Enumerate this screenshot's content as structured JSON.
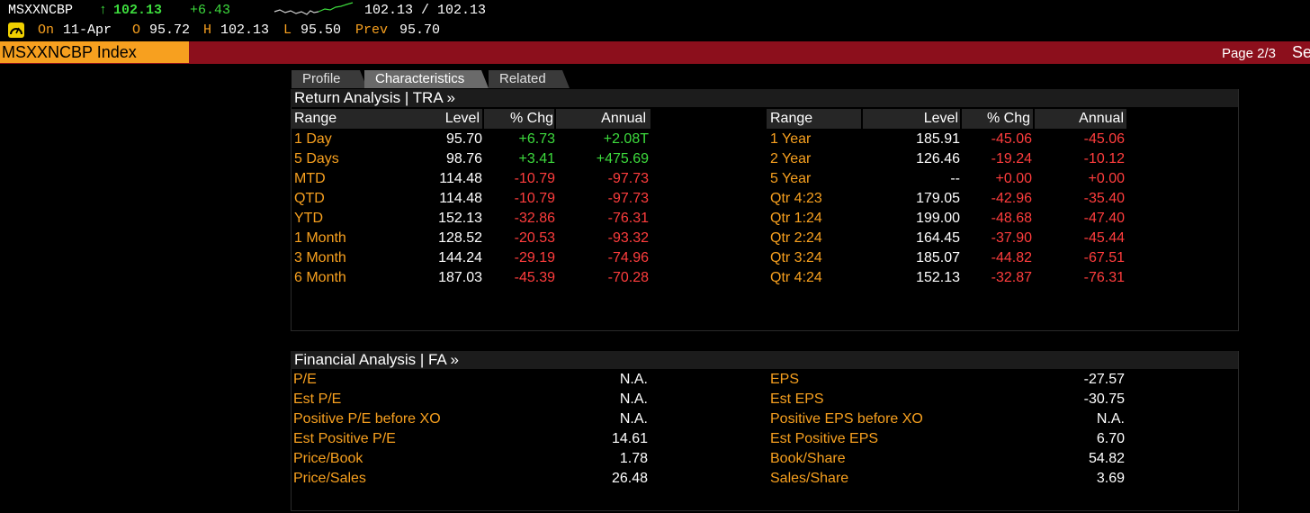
{
  "ticker": {
    "symbol": "MSXXNCBP",
    "arrow": "↑",
    "last": "102.13",
    "change": "+6.43",
    "bid_ask": "102.13 / 102.13"
  },
  "quote_line": {
    "on_label": "On",
    "date": "11-Apr",
    "open_label": "O",
    "open": "95.72",
    "high_label": "H",
    "high": "102.13",
    "low_label": "L",
    "low": "95.50",
    "prev_label": "Prev",
    "prev": "95.70"
  },
  "title": {
    "security": "MSXXNCBP Index",
    "page": "Page 2/3",
    "truncated": "Se"
  },
  "tabs": [
    {
      "label": "Profile",
      "active": false
    },
    {
      "label": "Characteristics",
      "active": true
    },
    {
      "label": "Related",
      "active": false
    }
  ],
  "return_analysis": {
    "header": "Return Analysis | TRA »",
    "columns": [
      "Range",
      "Level",
      "% Chg",
      "Annual"
    ],
    "left_rows": [
      {
        "range": "1 Day",
        "level": "95.70",
        "chg": "+6.73",
        "annual": "+2.08T"
      },
      {
        "range": "5 Days",
        "level": "98.76",
        "chg": "+3.41",
        "annual": "+475.69"
      },
      {
        "range": "MTD",
        "level": "114.48",
        "chg": "-10.79",
        "annual": "-97.73"
      },
      {
        "range": "QTD",
        "level": "114.48",
        "chg": "-10.79",
        "annual": "-97.73"
      },
      {
        "range": "YTD",
        "level": "152.13",
        "chg": "-32.86",
        "annual": "-76.31"
      },
      {
        "range": "1 Month",
        "level": "128.52",
        "chg": "-20.53",
        "annual": "-93.32"
      },
      {
        "range": "3 Month",
        "level": "144.24",
        "chg": "-29.19",
        "annual": "-74.96"
      },
      {
        "range": "6 Month",
        "level": "187.03",
        "chg": "-45.39",
        "annual": "-70.28"
      }
    ],
    "right_rows": [
      {
        "range": "1 Year",
        "level": "185.91",
        "chg": "-45.06",
        "annual": "-45.06"
      },
      {
        "range": "2 Year",
        "level": "126.46",
        "chg": "-19.24",
        "annual": "-10.12"
      },
      {
        "range": "5 Year",
        "level": "--",
        "chg": "+0.00",
        "annual": "+0.00"
      },
      {
        "range": "Qtr 4:23",
        "level": "179.05",
        "chg": "-42.96",
        "annual": "-35.40"
      },
      {
        "range": "Qtr 1:24",
        "level": "199.00",
        "chg": "-48.68",
        "annual": "-47.40"
      },
      {
        "range": "Qtr 2:24",
        "level": "164.45",
        "chg": "-37.90",
        "annual": "-45.44"
      },
      {
        "range": "Qtr 3:24",
        "level": "185.07",
        "chg": "-44.82",
        "annual": "-67.51"
      },
      {
        "range": "Qtr 4:24",
        "level": "152.13",
        "chg": "-32.87",
        "annual": "-76.31"
      }
    ]
  },
  "financial_analysis": {
    "header": "Financial Analysis | FA »",
    "left_rows": [
      {
        "label": "P/E",
        "value": "N.A."
      },
      {
        "label": "Est P/E",
        "value": "N.A."
      },
      {
        "label": "Positive P/E before XO",
        "value": "N.A."
      },
      {
        "label": "Est Positive P/E",
        "value": "14.61"
      },
      {
        "label": "Price/Book",
        "value": "1.78"
      },
      {
        "label": "Price/Sales",
        "value": "26.48"
      }
    ],
    "right_rows": [
      {
        "label": "EPS",
        "value": "-27.57"
      },
      {
        "label": "Est EPS",
        "value": "-30.75"
      },
      {
        "label": "Positive EPS before XO",
        "value": "N.A."
      },
      {
        "label": "Est Positive EPS",
        "value": "6.70"
      },
      {
        "label": "Book/Share",
        "value": "54.82"
      },
      {
        "label": "Sales/Share",
        "value": "3.69"
      }
    ]
  },
  "colors": {
    "orange": "#f7a01f",
    "green": "#3ddb3d",
    "red": "#ff3d3d",
    "title_bar": "#8c0f1c"
  }
}
